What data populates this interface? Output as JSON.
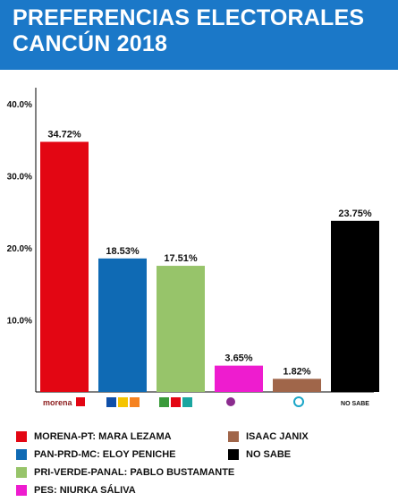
{
  "header": {
    "title_line1": "PREFERENCIAS ELECTORALES",
    "title_line2": "CANCÚN 2018",
    "background": "#1b78c8"
  },
  "chart_data": {
    "type": "bar",
    "title": "PREFERENCIAS ELECTORALES CANCÚN 2018",
    "xlabel": "",
    "ylabel": "",
    "ylim": [
      0,
      40
    ],
    "yticks": [
      "10.0%",
      "20.0%",
      "30.0%",
      "40.0%"
    ],
    "grid": false,
    "legend_position": "bottom",
    "categories": [
      "MORENA-PT: MARA LEZAMA",
      "PAN-PRD-MC: ELOY PENICHE",
      "PRI-VERDE-PANAL: PABLO BUSTAMANTE",
      "PES: NIURKA SÁLIVA",
      "ISAAC JANIX",
      "NO SABE"
    ],
    "values": [
      34.72,
      18.53,
      17.51,
      3.65,
      1.82,
      23.75
    ],
    "value_labels": [
      "34.72%",
      "18.53%",
      "17.51%",
      "3.65%",
      "1.82%",
      "23.75%"
    ],
    "colors": [
      "#e30613",
      "#0f6ab4",
      "#97c46a",
      "#ee1ccf",
      "#a0664a",
      "#000000"
    ],
    "x_tick_label_last": "NO SABE",
    "x_tick_icons": [
      "morena-pt-logo-icon",
      "pan-prd-mc-logos-icon",
      "pri-verde-panal-logos-icon",
      "pes-logo-icon",
      "independent-logo-icon"
    ],
    "logo_text": "morena"
  },
  "legend": [
    {
      "label": "MORENA-PT: MARA LEZAMA",
      "color": "#e30613"
    },
    {
      "label": "PAN-PRD-MC: ELOY PENICHE",
      "color": "#0f6ab4"
    },
    {
      "label": "PRI-VERDE-PANAL: PABLO BUSTAMANTE",
      "color": "#97c46a"
    },
    {
      "label": "PES: NIURKA SÁLIVA",
      "color": "#ee1ccf"
    },
    {
      "label": "ISAAC JANIX",
      "color": "#a0664a"
    },
    {
      "label": "NO SABE",
      "color": "#000000"
    }
  ]
}
